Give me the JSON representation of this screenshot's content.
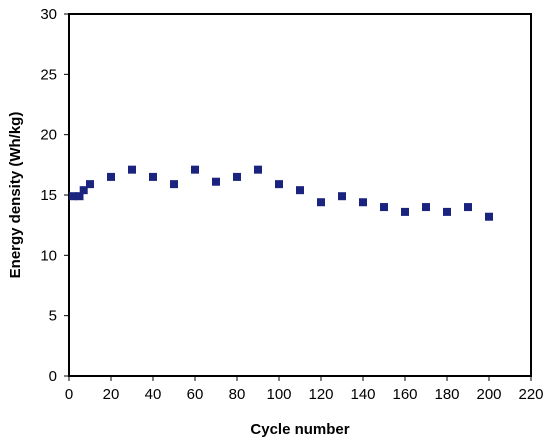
{
  "chart_data": {
    "type": "scatter",
    "title": "",
    "xlabel": "Cycle number",
    "ylabel": "Energy density (Wh/kg)",
    "xlim": [
      0,
      220
    ],
    "ylim": [
      0,
      30
    ],
    "x_ticks": [
      0,
      20,
      40,
      60,
      80,
      100,
      120,
      140,
      160,
      180,
      200,
      220
    ],
    "y_ticks": [
      0,
      5,
      10,
      15,
      20,
      25,
      30
    ],
    "grid": false,
    "legend": "none",
    "marker_color": "#1a237e",
    "series": [
      {
        "points": [
          {
            "x": 2,
            "y": 14.9
          },
          {
            "x": 5,
            "y": 14.9
          },
          {
            "x": 7,
            "y": 15.4
          },
          {
            "x": 10,
            "y": 15.9
          },
          {
            "x": 20,
            "y": 16.5
          },
          {
            "x": 30,
            "y": 17.1
          },
          {
            "x": 40,
            "y": 16.5
          },
          {
            "x": 50,
            "y": 15.9
          },
          {
            "x": 60,
            "y": 17.1
          },
          {
            "x": 70,
            "y": 16.1
          },
          {
            "x": 80,
            "y": 16.5
          },
          {
            "x": 90,
            "y": 17.1
          },
          {
            "x": 100,
            "y": 15.9
          },
          {
            "x": 110,
            "y": 15.4
          },
          {
            "x": 120,
            "y": 14.4
          },
          {
            "x": 130,
            "y": 14.9
          },
          {
            "x": 140,
            "y": 14.4
          },
          {
            "x": 150,
            "y": 14.0
          },
          {
            "x": 160,
            "y": 13.6
          },
          {
            "x": 170,
            "y": 14.0
          },
          {
            "x": 180,
            "y": 13.6
          },
          {
            "x": 190,
            "y": 14.0
          },
          {
            "x": 200,
            "y": 13.2
          }
        ]
      }
    ]
  }
}
